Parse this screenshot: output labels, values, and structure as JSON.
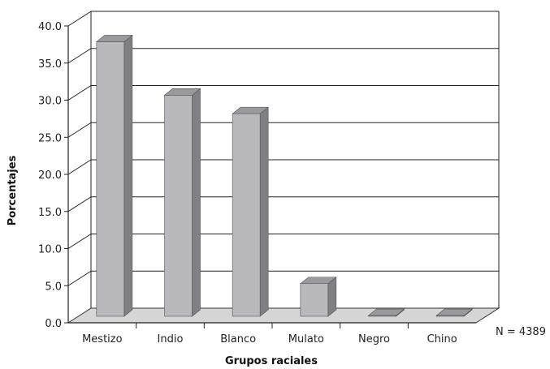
{
  "chart_data": {
    "type": "bar",
    "categories": [
      "Mestizo",
      "Indio",
      "Blanco",
      "Mulato",
      "Negro",
      "Chino"
    ],
    "values": [
      37.0,
      29.8,
      27.3,
      4.4,
      0.1,
      0.1
    ],
    "title": "",
    "xlabel": "Grupos raciales",
    "ylabel": "Porcentajes",
    "ylim": [
      0,
      40
    ],
    "yticks": [
      "0.0",
      "5.0",
      "10.0",
      "15.0",
      "20.0",
      "25.0",
      "30.0",
      "35.0",
      "40.0"
    ],
    "grid": true,
    "note": "N = 4389",
    "colors": {
      "bar_front": "#b9b9bd",
      "bar_side": "#7f7f84",
      "bar_top": "#9a9a9e",
      "floor": "#d6d6d6",
      "grid": "#222222"
    }
  }
}
